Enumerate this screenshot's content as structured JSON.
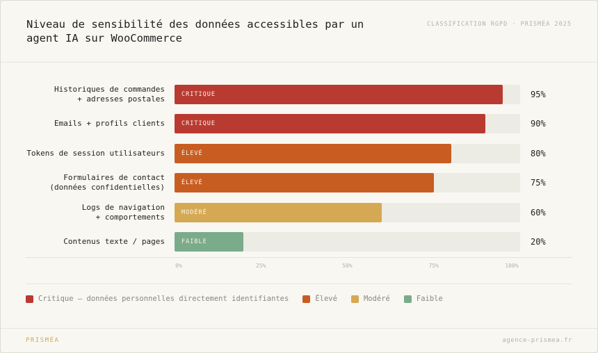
{
  "header": {
    "title": "Niveau de sensibilité des données accessibles par un agent IA sur WooCommerce",
    "subtitle": "CLASSIFICATION RGPD · PRISMÉA 2025"
  },
  "footer": {
    "brand": "PRISMÉA",
    "site": "agence-prismea.fr"
  },
  "colors": {
    "critique": "#b93a31",
    "eleve": "#c85d22",
    "modere": "#d5a954",
    "faible": "#7aab8a"
  },
  "legend": {
    "critique": "Critique — données personnelles directement identifiantes",
    "eleve": "Élevé",
    "modere": "Modéré",
    "faible": "Faible"
  },
  "chart_data": {
    "type": "bar",
    "orientation": "horizontal",
    "categories": [
      "Historiques de commandes\n+ adresses postales",
      "Emails + profils clients",
      "Tokens de session utilisateurs",
      "Formulaires de contact\n(données confidentielles)",
      "Logs de navigation\n+ comportements",
      "Contenus texte / pages"
    ],
    "values": [
      95,
      90,
      80,
      75,
      60,
      20
    ],
    "value_labels": [
      "95%",
      "90%",
      "80%",
      "75%",
      "60%",
      "20%"
    ],
    "levels": [
      "critique",
      "critique",
      "eleve",
      "eleve",
      "modere",
      "faible"
    ],
    "level_labels": [
      "CRITIQUE",
      "CRITIQUE",
      "ÉLEVÉ",
      "ÉLEVÉ",
      "MODÉRÉ",
      "FAIBLE"
    ],
    "xlim": [
      0,
      100
    ],
    "xticks": [
      0,
      25,
      50,
      75,
      100
    ],
    "xtick_labels": [
      "0%",
      "25%",
      "50%",
      "75%",
      "100%"
    ],
    "grid": false,
    "legend_position": "bottom-left"
  }
}
